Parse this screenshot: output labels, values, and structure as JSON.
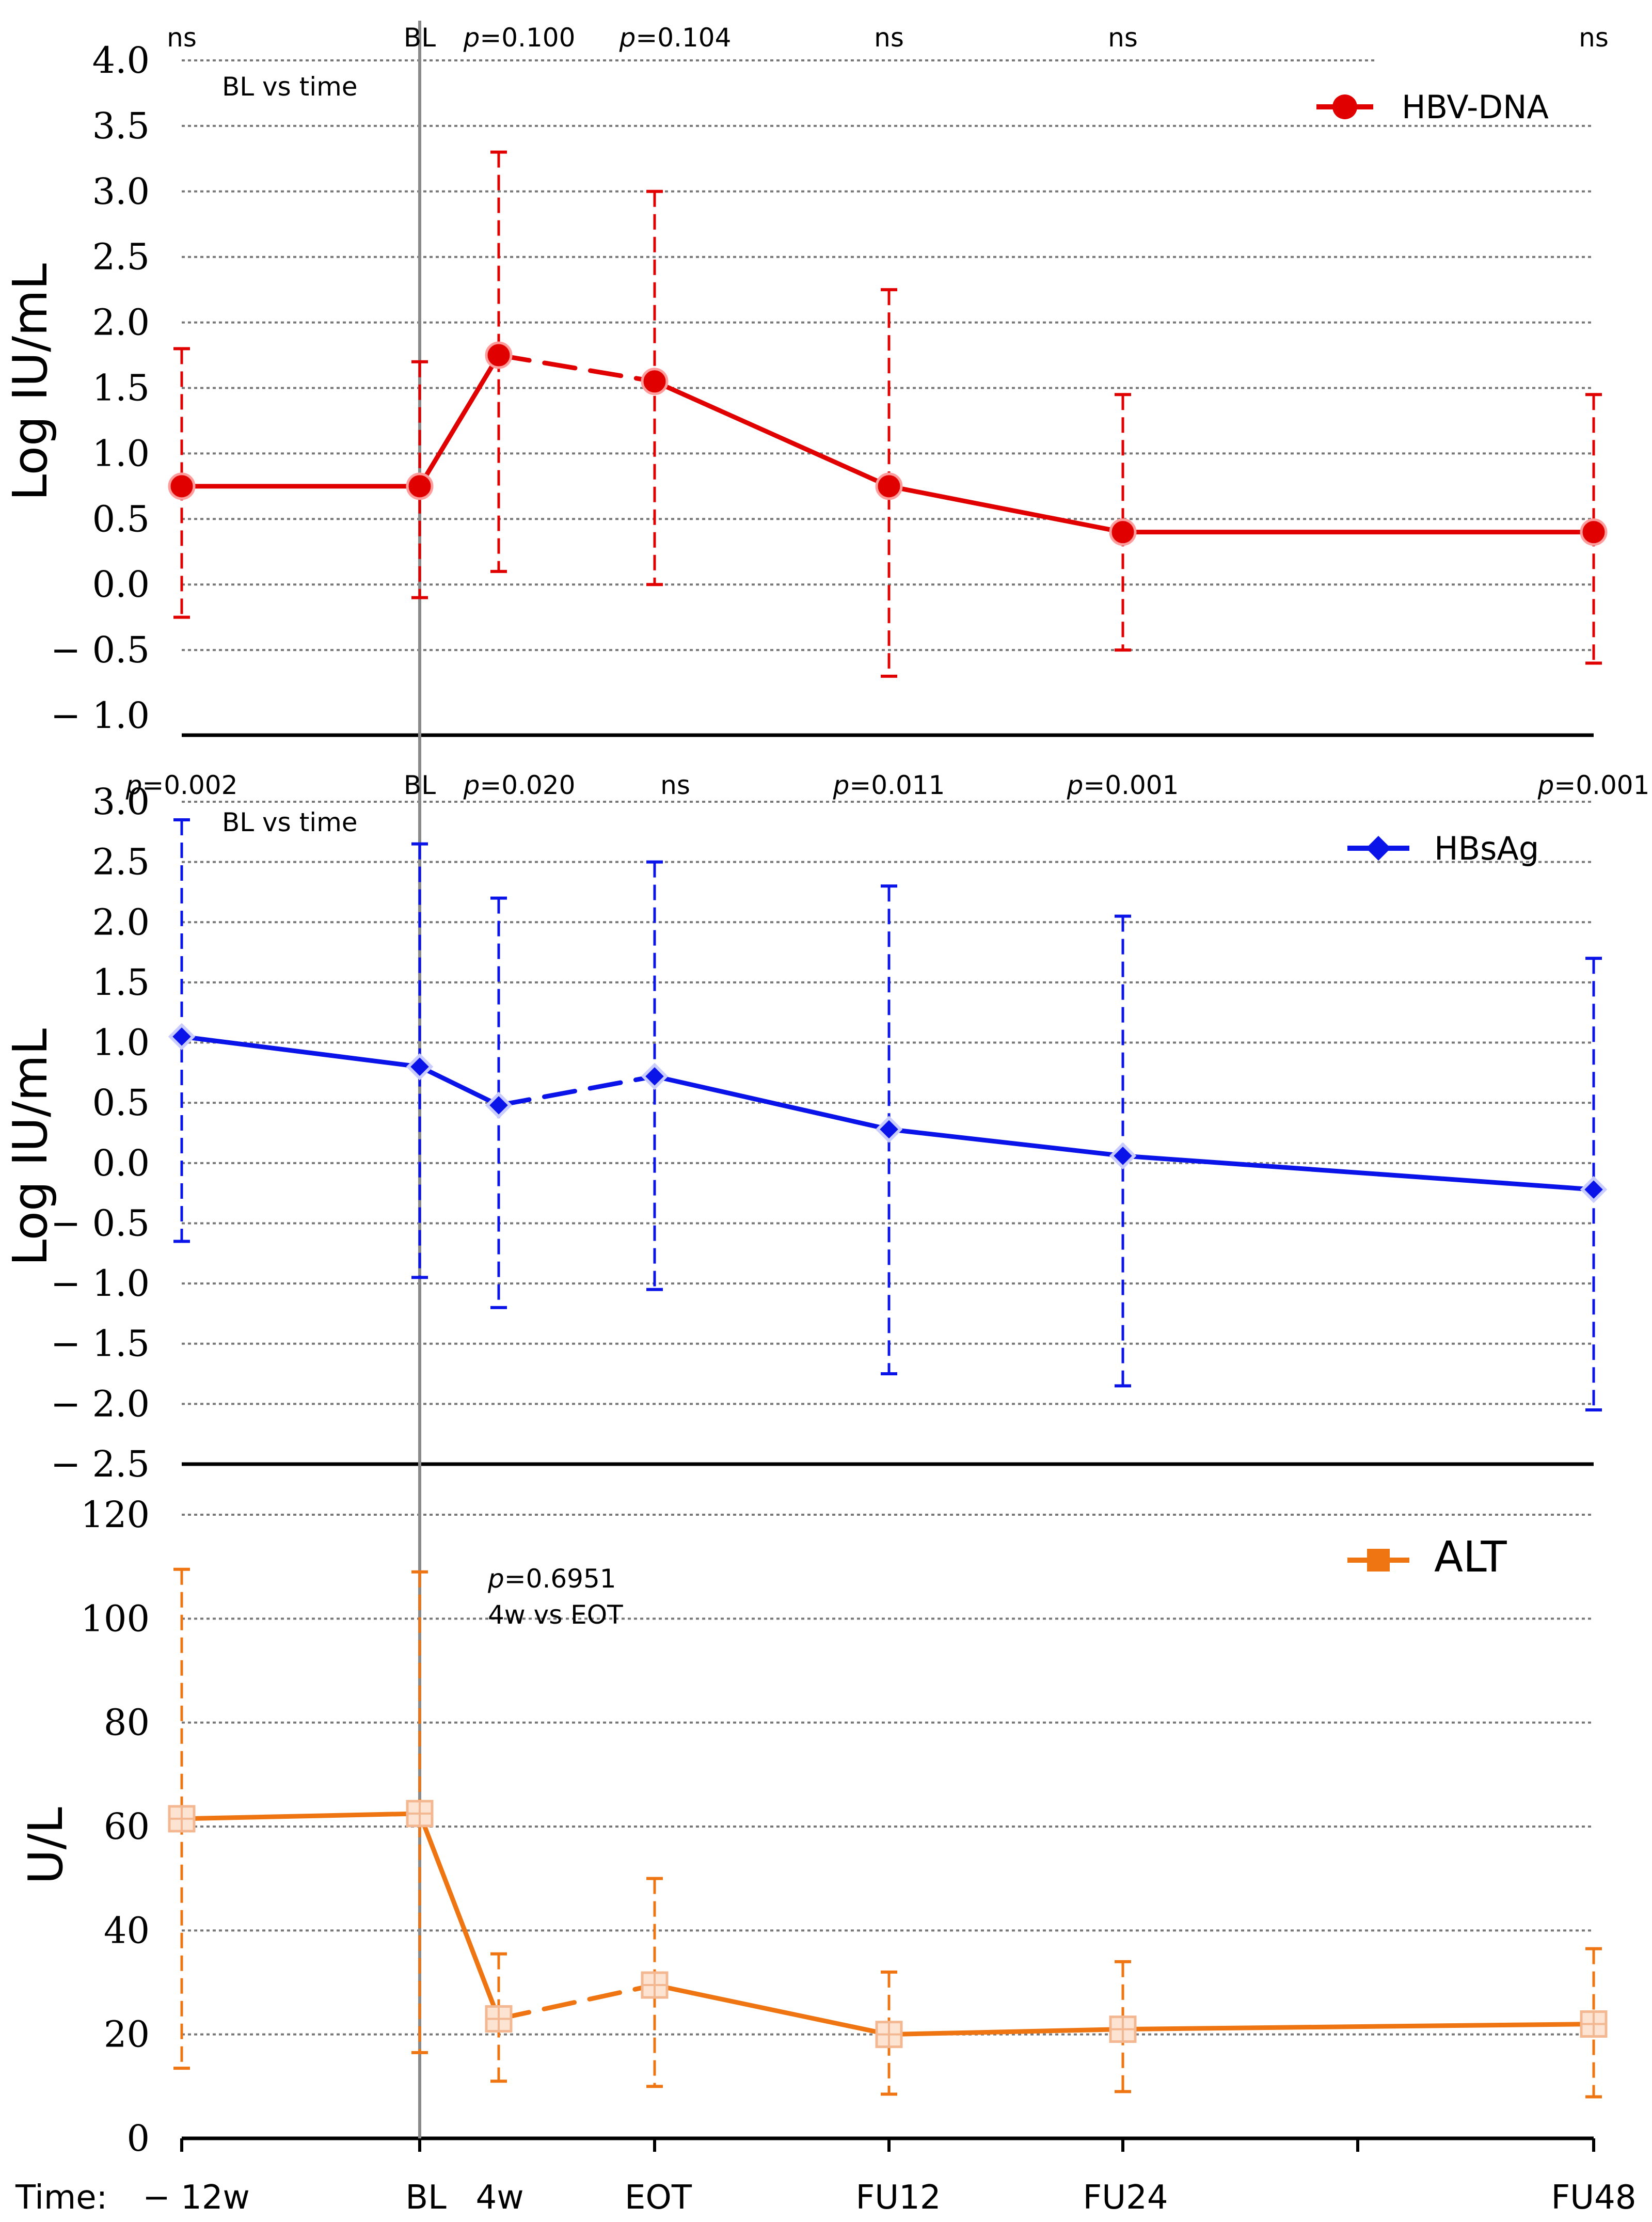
{
  "time_label": "Time:",
  "chart_data": [
    {
      "type": "line",
      "panel": "top",
      "ylabel": "Log IU/mL",
      "ylim": [
        -1.0,
        4.0
      ],
      "yticks": [
        4.0,
        3.5,
        3.0,
        2.5,
        2.0,
        1.5,
        1.0,
        0.5,
        0.0,
        -0.5,
        -1.0
      ],
      "ytick_labels": [
        "4.0",
        "3.5",
        "3.0",
        "2.5",
        "2.0",
        "1.5",
        "1.0",
        "0.5",
        "0.0",
        "− 0.5",
        "− 1.0"
      ],
      "series": [
        {
          "name": "HBV-DNA",
          "color": "#e00000",
          "marker": "circle",
          "x": [
            -12,
            0,
            4,
            14,
            26,
            38,
            62
          ],
          "values": [
            0.75,
            0.75,
            1.75,
            1.55,
            0.75,
            0.4,
            0.4
          ],
          "err_low": [
            -0.25,
            -0.1,
            0.1,
            0.0,
            -0.7,
            -0.5,
            -0.6
          ],
          "err_high": [
            1.8,
            1.7,
            3.3,
            3.0,
            2.25,
            1.45,
            1.45
          ]
        }
      ],
      "annotations": [
        {
          "label": "ns",
          "x": -12
        },
        {
          "label": "BL",
          "x": 0
        },
        {
          "label": "p=0.100",
          "x": 4
        },
        {
          "label": "p=0.104",
          "x": 14
        },
        {
          "label": "ns",
          "x": 26
        },
        {
          "label": "ns",
          "x": 38
        },
        {
          "label": "ns",
          "x": 62
        }
      ],
      "note": "BL vs time"
    },
    {
      "type": "line",
      "panel": "middle",
      "ylabel": "Log IU/mL",
      "ylim": [
        -2.5,
        3.0
      ],
      "yticks": [
        3.0,
        2.5,
        2.0,
        1.5,
        1.0,
        0.5,
        0.0,
        -0.5,
        -1.0,
        -1.5,
        -2.0,
        -2.5
      ],
      "ytick_labels": [
        "3.0",
        "2.5",
        "2.0",
        "1.5",
        "1.0",
        "0.5",
        "0.0",
        "− 0.5",
        "− 1.0",
        "− 1.5",
        "− 2.0",
        "− 2.5"
      ],
      "series": [
        {
          "name": "HBsAg",
          "color": "#0a14e8",
          "marker": "diamond",
          "x": [
            -12,
            0,
            4,
            14,
            26,
            38,
            62
          ],
          "values": [
            1.05,
            0.8,
            0.48,
            0.72,
            0.28,
            0.06,
            -0.22
          ],
          "err_low": [
            -0.65,
            -0.95,
            -1.2,
            -1.05,
            -1.75,
            -1.85,
            -2.05
          ],
          "err_high": [
            2.85,
            2.65,
            2.2,
            2.5,
            2.3,
            2.05,
            1.7
          ]
        }
      ],
      "annotations": [
        {
          "label": "p=0.002",
          "x": -12
        },
        {
          "label": "BL",
          "x": 0
        },
        {
          "label": "p=0.020",
          "x": 4
        },
        {
          "label": "ns",
          "x": 14
        },
        {
          "label": "p=0.011",
          "x": 26
        },
        {
          "label": "p=0.001",
          "x": 38
        },
        {
          "label": "p=0.001",
          "x": 62
        }
      ],
      "note": "BL vs time"
    },
    {
      "type": "line",
      "panel": "bottom",
      "ylabel": "U/L",
      "ylim": [
        0,
        120
      ],
      "yticks": [
        120,
        100,
        80,
        60,
        40,
        20,
        0
      ],
      "ytick_labels": [
        "120",
        "100",
        "80",
        "60",
        "40",
        "20",
        "0"
      ],
      "series": [
        {
          "name": "ALT",
          "color": "#ee7511",
          "marker": "square",
          "x": [
            -12,
            0,
            4,
            14,
            26,
            38,
            62
          ],
          "values": [
            61.5,
            62.5,
            23,
            29.5,
            20,
            21,
            22
          ],
          "err_low": [
            13.5,
            16.5,
            11,
            10,
            8.5,
            9,
            8
          ],
          "err_high": [
            109.5,
            109,
            35.5,
            50,
            32,
            34,
            36.5
          ]
        }
      ],
      "annotations": [
        {
          "label": "p=0.6951",
          "x": 4
        },
        {
          "label": "4w vs EOT",
          "x": 4
        }
      ],
      "xticks": [
        -12,
        0,
        4,
        14,
        26,
        38,
        62
      ],
      "xtick_labels": [
        "− 12w",
        "BL",
        "4w",
        "EOT",
        "FU12",
        "FU24",
        "FU48"
      ]
    }
  ]
}
